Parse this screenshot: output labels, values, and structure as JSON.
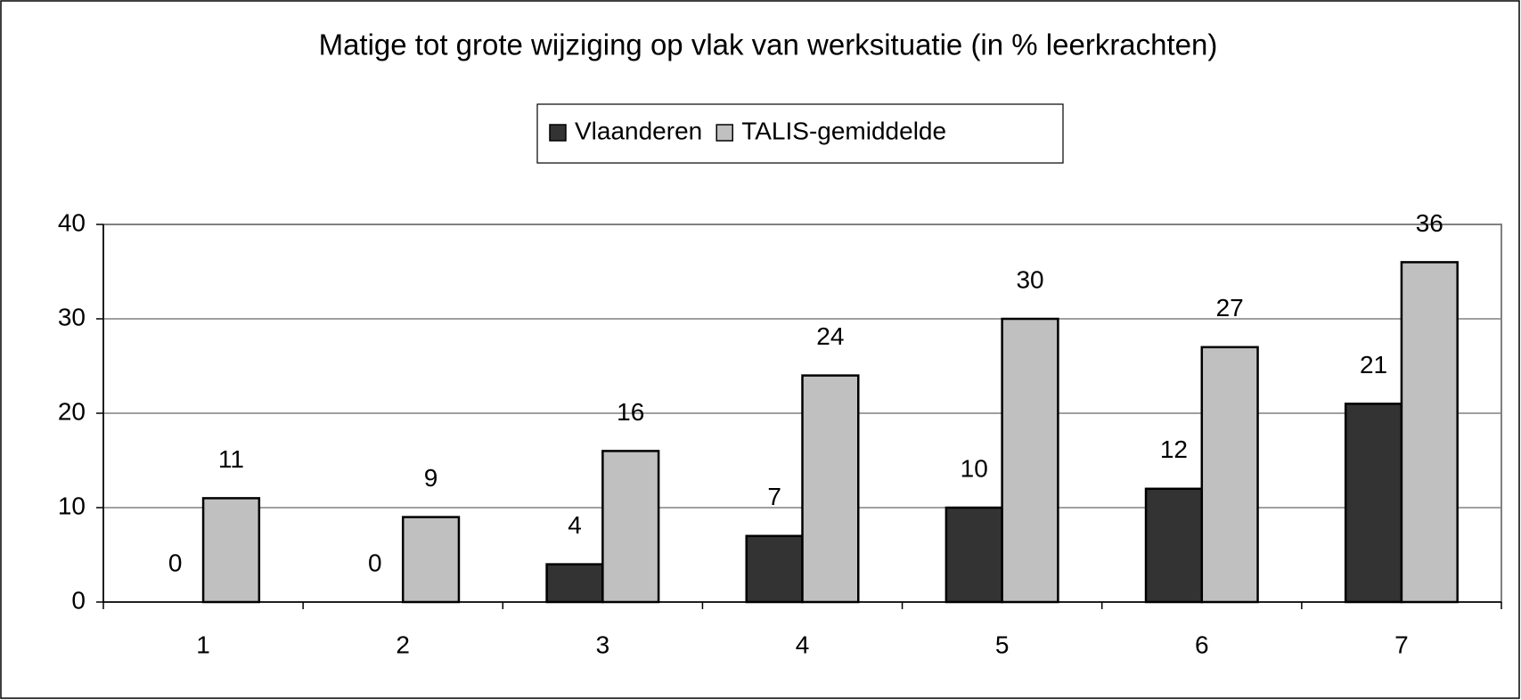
{
  "chart_data": {
    "type": "bar",
    "title": "Matige tot grote wijziging op vlak van werksituatie (in % leerkrachten)",
    "categories": [
      "1",
      "2",
      "3",
      "4",
      "5",
      "6",
      "7"
    ],
    "series": [
      {
        "name": "Vlaanderen",
        "color": "#333333",
        "values": [
          0,
          0,
          4,
          7,
          10,
          12,
          21
        ]
      },
      {
        "name": "TALIS-gemiddelde",
        "color": "#c0c0c0",
        "values": [
          11,
          9,
          16,
          24,
          30,
          27,
          36
        ]
      }
    ],
    "ylim": [
      0,
      40
    ],
    "yticks": [
      0,
      10,
      20,
      30,
      40
    ],
    "grid": true,
    "legend": "top"
  }
}
